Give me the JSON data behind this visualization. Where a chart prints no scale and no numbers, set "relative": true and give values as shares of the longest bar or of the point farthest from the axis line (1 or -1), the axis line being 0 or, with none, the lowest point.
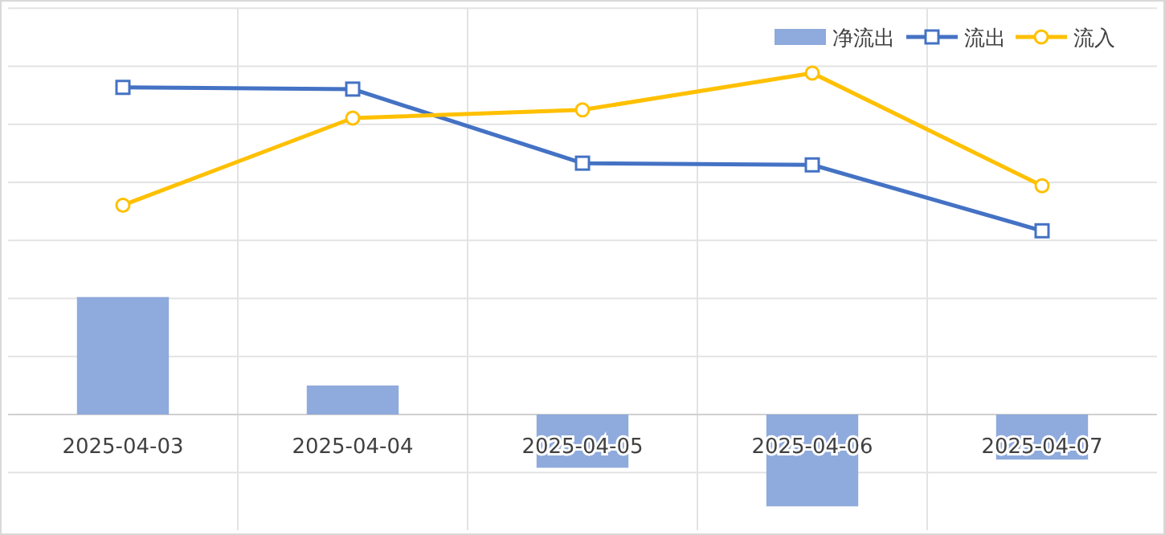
{
  "chart_data": {
    "type": "bar",
    "relative": true,
    "categories": [
      "2025-04-03",
      "2025-04-04",
      "2025-04-05",
      "2025-04-06",
      "2025-04-07"
    ],
    "series": [
      {
        "name": "净流出",
        "color": "#8faadc",
        "values": [
          0.344,
          0.085,
          -0.156,
          -0.269,
          -0.132
        ]
      },
      {
        "name": "流出",
        "type": "line",
        "color": "#4472c4",
        "marker": "square",
        "values": [
          0.958,
          0.953,
          0.736,
          0.731,
          0.538
        ]
      },
      {
        "name": "流入",
        "type": "line",
        "color": "#ffc000",
        "marker": "circle",
        "values": [
          0.613,
          0.868,
          0.892,
          1,
          0.67
        ]
      }
    ],
    "grid": true,
    "legend": "top right",
    "line_style": "solid"
  }
}
